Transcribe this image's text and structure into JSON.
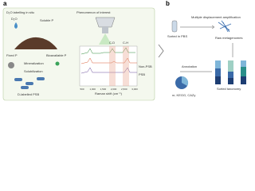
{
  "panel_a": {
    "letter": "a",
    "labelling": "D₂O labelling in situ",
    "phenomenon": "Phenomenon of interest",
    "d2o": "D₂O",
    "soluble": "Soluble P",
    "fixed": "Fixed P",
    "bioavailable": "Bioavailable P",
    "mineralization": "Mineralization",
    "solubilization": "Solubilization",
    "labelled": "D-labelled PSB",
    "cd": "C-D",
    "ch": "C-H",
    "non_psb": "Non-PSB",
    "psb": "PSB",
    "x_axis": "Raman shift (cm⁻¹)",
    "ticks": [
      "500",
      "1,000",
      "1,500",
      "2,000",
      "2,500",
      "3,000"
    ]
  },
  "panel_b": {
    "letter": "b",
    "sorted": "Sorted in PBS",
    "mda": "Multiple displacement amplification",
    "raw": "Raw metagenomes",
    "annotation": "Annotation",
    "taxonomy": "Sorted taxonomy",
    "databases": "nr, KEGG, CAZy"
  }
}
